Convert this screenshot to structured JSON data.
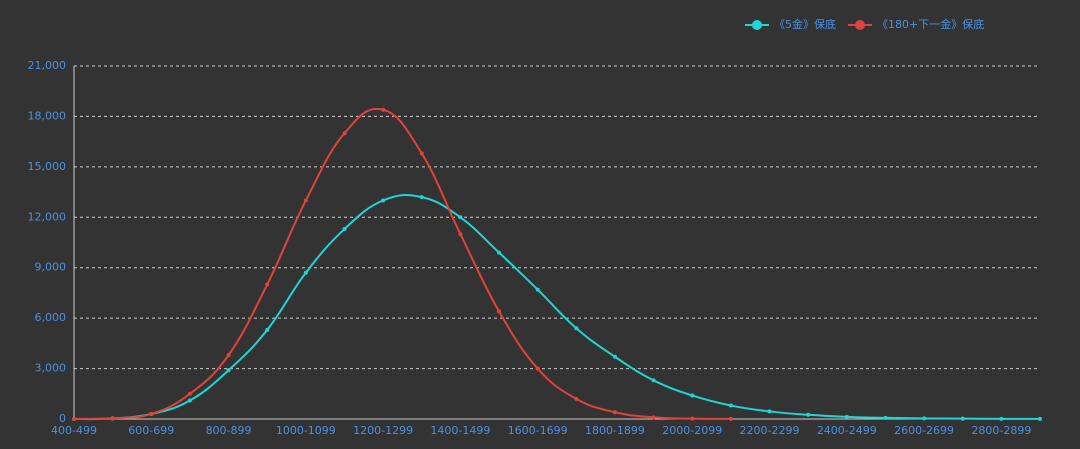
{
  "chart_data": {
    "type": "line",
    "categories": [
      "400-499",
      null,
      "600-699",
      null,
      "800-899",
      null,
      "1000-1099",
      null,
      "1200-1299",
      null,
      "1400-1499",
      null,
      "1600-1699",
      null,
      "1800-1899",
      null,
      "2000-2099",
      null,
      "2200-2299",
      null,
      "2400-2499",
      null,
      "2600-2699",
      null,
      "2800-2899",
      null
    ],
    "series": [
      {
        "name": "《5金》保底",
        "color": "#1fd5d5",
        "values": [
          0,
          30,
          300,
          1100,
          2900,
          5300,
          8700,
          11300,
          13000,
          13200,
          12000,
          9900,
          7700,
          5400,
          3700,
          2300,
          1400,
          800,
          450,
          250,
          130,
          70,
          40,
          20,
          10,
          5
        ]
      },
      {
        "name": "《180+下一金》保底",
        "color": "#e0433a",
        "values": [
          0,
          50,
          300,
          1500,
          3800,
          8000,
          13000,
          17000,
          18400,
          15800,
          11000,
          6400,
          3000,
          1200,
          400,
          100,
          20,
          5,
          null,
          null,
          null,
          null,
          null,
          null,
          null,
          null
        ]
      }
    ],
    "ylim": [
      0,
      21000
    ],
    "yticks": [
      0,
      {
        "value": 3000,
        "label": "3,000"
      },
      {
        "value": 6000,
        "label": "6,000"
      },
      {
        "value": 9000,
        "label": "9,000"
      },
      {
        "value": 12000,
        "label": "12,000"
      },
      {
        "value": 15000,
        "label": "15,000"
      },
      {
        "value": 18000,
        "label": "18,000"
      },
      {
        "value": 21000,
        "label": "21,000"
      }
    ],
    "grid": true,
    "legend": "top-right"
  }
}
